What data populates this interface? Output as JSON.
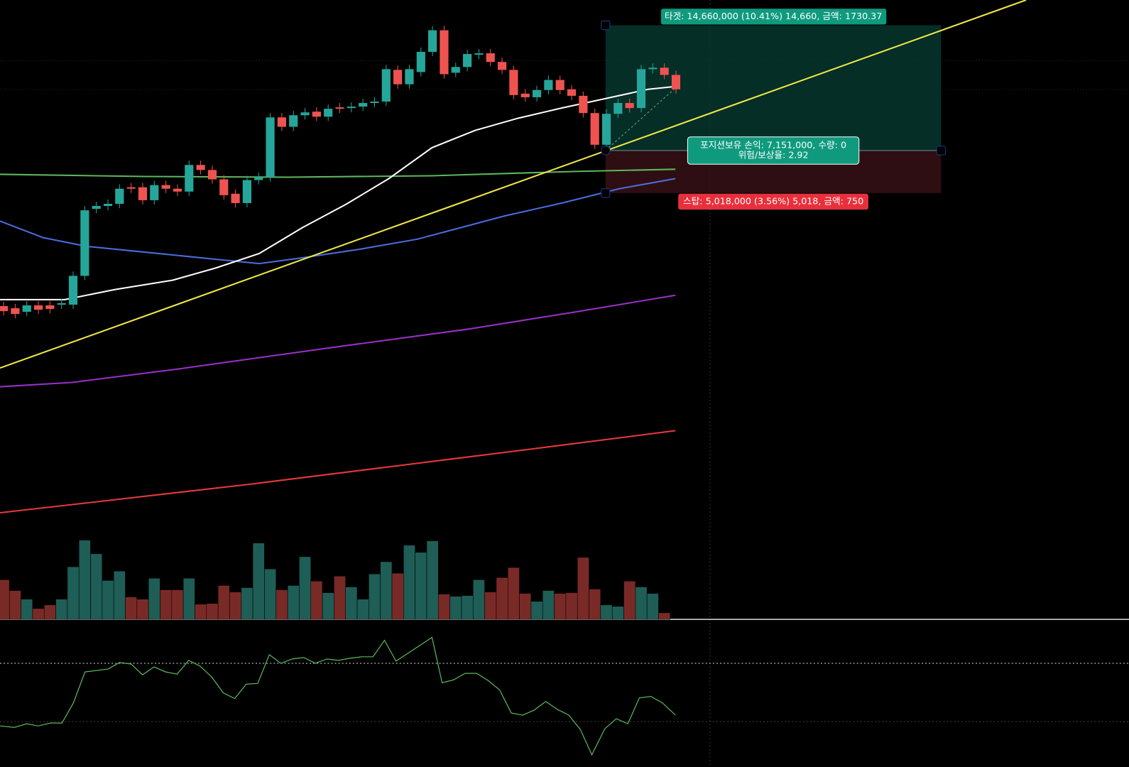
{
  "position_tool": {
    "target_label": "타겟: 14,660,000 (10.41%) 14,660, 금액: 1730.37",
    "info_lines": [
      "포지션보유 손익: 7,151,000, 수량: 0",
      "위험/보상율: 2.92"
    ],
    "stop_label": "스탑: 5,018,000 (3.56%) 5,018, 금액: 750"
  }
}
